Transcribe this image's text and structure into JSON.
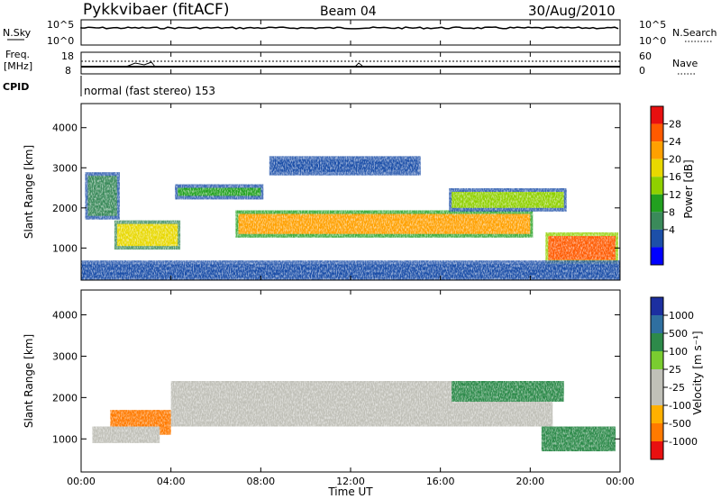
{
  "header": {
    "title": "Pykkvibaer (fitACF)",
    "beam": "Beam 04",
    "date": "30/Aug/2010"
  },
  "panels": {
    "nsky": {
      "label": "N.Sky",
      "tick_top": "10^5",
      "tick_bottom": "10^0",
      "right_label": "N.Search",
      "right_tick_top": "10^5",
      "right_tick_bottom": "10^0"
    },
    "freq": {
      "label_top": "Freq.",
      "label_bottom": "[MHz]",
      "tick_top": "18",
      "tick_bottom": "8",
      "right_label": "Nave",
      "right_tick_top": "60",
      "right_tick_bottom": "0"
    },
    "cpid": {
      "label": "CPID",
      "text": "normal (fast stereo) 153"
    }
  },
  "colorbars": {
    "power": {
      "label": "Power [dB]",
      "ticks": [
        "28",
        "24",
        "20",
        "16",
        "12",
        "8",
        "4"
      ],
      "colors": [
        "#e81010",
        "#ff5a00",
        "#ffa000",
        "#e8d800",
        "#8fd000",
        "#22a020",
        "#3a8a5a",
        "#1c4fa8",
        "#0000ff"
      ]
    },
    "velocity": {
      "label": "Velocity [m s⁻¹]",
      "ticks": [
        "1000",
        "500",
        "100",
        "25",
        "-25",
        "-100",
        "-500",
        "-1000"
      ],
      "colors": [
        "#1c2fa0",
        "#2f6fa0",
        "#2d8a4a",
        "#7acc30",
        "#c0c0b8",
        "#c0c0b8",
        "#ffb000",
        "#ff7a00",
        "#e81010"
      ]
    }
  },
  "chart_data": [
    {
      "type": "heatmap",
      "title": "",
      "ylabel": "Slant Range [km]",
      "xlabel": "",
      "ylim": [
        200,
        4600
      ],
      "xlim": [
        "00:00",
        "24:00"
      ],
      "y_ticks": [
        "1000",
        "2000",
        "3000",
        "4000"
      ],
      "colorbar": "Power [dB]",
      "regions": [
        {
          "x": [
            0.3,
            1.6
          ],
          "y": [
            1800,
            2800
          ],
          "value": 10
        },
        {
          "x": [
            1.6,
            4.3
          ],
          "y": [
            1050,
            1600
          ],
          "value": 20
        },
        {
          "x": [
            4.3,
            8.0
          ],
          "y": [
            2300,
            2500
          ],
          "value": 12
        },
        {
          "x": [
            7.0,
            20.0
          ],
          "y": [
            1350,
            1850
          ],
          "value": 24
        },
        {
          "x": [
            8.5,
            15.0
          ],
          "y": [
            2900,
            3200
          ],
          "value": 6
        },
        {
          "x": [
            16.5,
            21.5
          ],
          "y": [
            2000,
            2400
          ],
          "value": 16
        },
        {
          "x": [
            20.8,
            23.8
          ],
          "y": [
            700,
            1300
          ],
          "value": 28
        },
        {
          "x": [
            0.0,
            24.0
          ],
          "y": [
            250,
            600
          ],
          "value": 6
        }
      ]
    },
    {
      "type": "heatmap",
      "title": "",
      "ylabel": "Slant Range [km]",
      "xlabel": "Time UT",
      "ylim": [
        200,
        4600
      ],
      "xlim": [
        "00:00",
        "24:00"
      ],
      "x_ticks": [
        "00:00",
        "04:00",
        "08:00",
        "12:00",
        "16:00",
        "20:00",
        "00:00"
      ],
      "y_ticks": [
        "1000",
        "2000",
        "3000",
        "4000"
      ],
      "colorbar": "Velocity [m s⁻¹]",
      "regions": [
        {
          "x": [
            1.3,
            4.0
          ],
          "y": [
            1100,
            1700
          ],
          "value": -500
        },
        {
          "x": [
            4.0,
            21.0
          ],
          "y": [
            1300,
            2400
          ],
          "value": 0
        },
        {
          "x": [
            16.5,
            21.5
          ],
          "y": [
            1900,
            2400
          ],
          "value": 100
        },
        {
          "x": [
            20.5,
            23.8
          ],
          "y": [
            700,
            1300
          ],
          "value": 300
        },
        {
          "x": [
            0.5,
            3.5
          ],
          "y": [
            900,
            1300
          ],
          "value": 0
        }
      ]
    }
  ]
}
